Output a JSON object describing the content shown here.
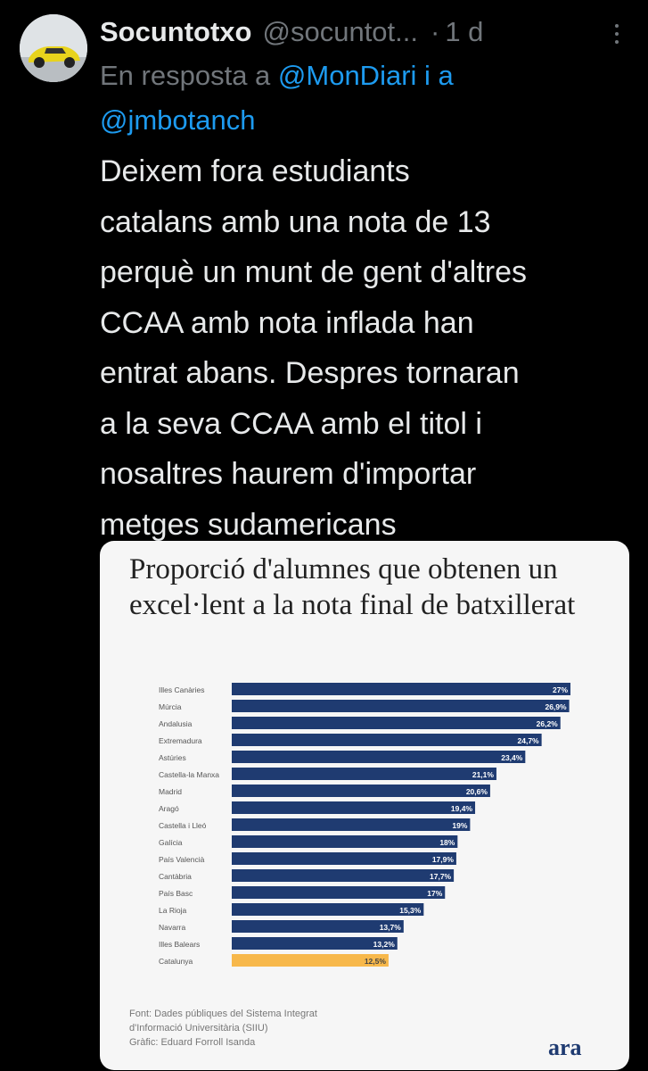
{
  "author": {
    "name": "Socuntotxo",
    "handle": "@socuntot...",
    "separator": "·",
    "time": "1 d"
  },
  "reply": {
    "prefix": "En resposta a ",
    "mention1": "@MonDiari",
    "connector": " i a",
    "mention2": "@jmbotanch"
  },
  "tweet": {
    "text": "Deixem fora estudiants\ncatalans amb una nota de 13\nperquè un munt de gent d'altres\nCCAA amb nota inflada han\nentrat abans. Despres tornaran\na la seva CCAA amb el titol i\nnosaltres haurem d'importar\nmetges sudamericans"
  },
  "card": {
    "source_lines": [
      "Font: Dades públiques del Sistema Integrat",
      "d'Informació Universitària (SIIU)",
      "Gràfic: Eduard Forroll Isanda"
    ],
    "logo": "ara"
  },
  "chart_data": {
    "type": "bar",
    "orientation": "horizontal",
    "title": "Proporció d'alumnes que obtenen un excel·lent a la nota final de batxillerat",
    "categories": [
      "Illes Canàries",
      "Múrcia",
      "Andalusia",
      "Extremadura",
      "Astúries",
      "Castella-la Manxa",
      "Madrid",
      "Aragó",
      "Castella i Lleó",
      "Galícia",
      "País Valencià",
      "Cantàbria",
      "País Basc",
      "La Rioja",
      "Navarra",
      "Illes Balears",
      "Catalunya"
    ],
    "values": [
      27,
      26.9,
      26.2,
      24.7,
      23.4,
      21.1,
      20.6,
      19.4,
      19,
      18,
      17.9,
      17.7,
      17,
      15.3,
      13.7,
      13.2,
      12.5
    ],
    "value_labels": [
      "27%",
      "26,9%",
      "26,2%",
      "24,7%",
      "23,4%",
      "21,1%",
      "20,6%",
      "19,4%",
      "19%",
      "18%",
      "17,9%",
      "17,7%",
      "17%",
      "15,3%",
      "13,7%",
      "13,2%",
      "12,5%"
    ],
    "highlight": "Catalunya",
    "colors": {
      "bar": "#1f3b71",
      "highlight": "#f7b84b",
      "label_light": "#ffffff",
      "label_dark": "#444444"
    },
    "xlim": [
      0,
      27
    ],
    "grid": false,
    "legend": "none"
  }
}
